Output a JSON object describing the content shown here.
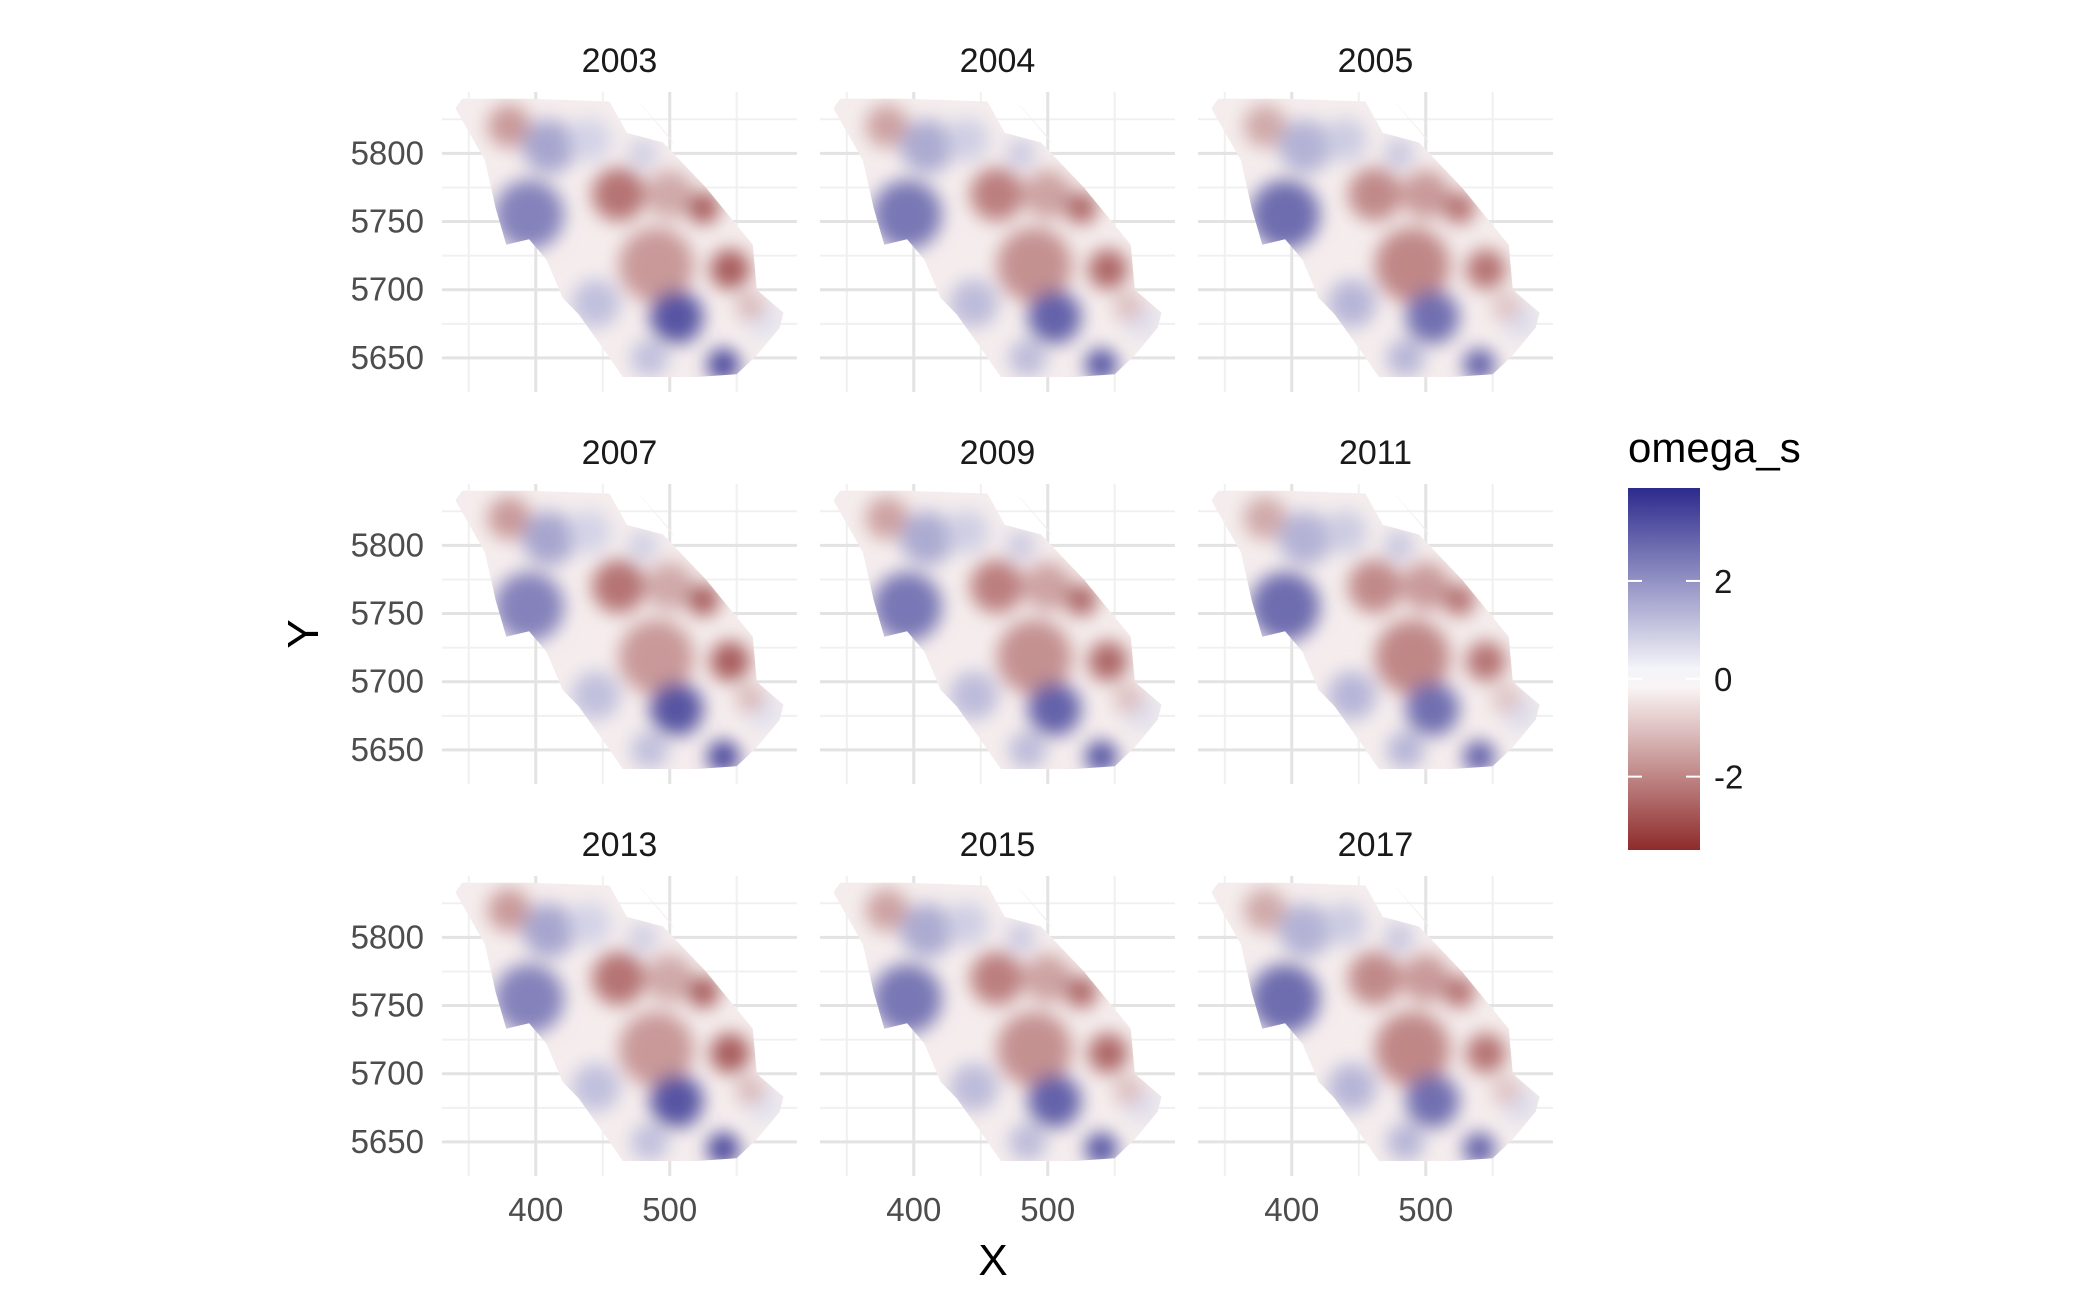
{
  "chart_data": {
    "type": "heatmap",
    "title": "",
    "xlabel": "X",
    "ylabel": "Y",
    "fill_label": "omega_s",
    "xlim": [
      330,
      595
    ],
    "ylim": [
      5625,
      5845
    ],
    "x_ticks": [
      400,
      500
    ],
    "y_ticks": [
      5650,
      5700,
      5750,
      5800
    ],
    "grid": true,
    "legend_position": "right",
    "color_scale": {
      "type": "diverging",
      "low": "#8e2a2a",
      "mid": "#ffffff",
      "high": "#2c2a8c",
      "limits": [
        -3.5,
        3.9
      ],
      "breaks": [
        -2,
        0,
        2
      ],
      "break_labels": [
        "-2",
        "0",
        "2"
      ]
    },
    "facets": [
      {
        "label": "2003",
        "year": 2003
      },
      {
        "label": "2004",
        "year": 2004
      },
      {
        "label": "2005",
        "year": 2005
      },
      {
        "label": "2007",
        "year": 2007
      },
      {
        "label": "2009",
        "year": 2009
      },
      {
        "label": "2011",
        "year": 2011
      },
      {
        "label": "2013",
        "year": 2013
      },
      {
        "label": "2015",
        "year": 2015
      },
      {
        "label": "2017",
        "year": 2017
      }
    ],
    "spatial_field": {
      "units": "data",
      "blobs": [
        {
          "x": 380,
          "y": 5820,
          "value": -1.6,
          "r": 16
        },
        {
          "x": 395,
          "y": 5755,
          "value": 2.6,
          "r": 26
        },
        {
          "x": 410,
          "y": 5805,
          "value": 1.6,
          "r": 20
        },
        {
          "x": 440,
          "y": 5810,
          "value": 0.9,
          "r": 16
        },
        {
          "x": 462,
          "y": 5770,
          "value": -2.2,
          "r": 20
        },
        {
          "x": 500,
          "y": 5770,
          "value": -1.6,
          "r": 18
        },
        {
          "x": 525,
          "y": 5760,
          "value": -2.6,
          "r": 12
        },
        {
          "x": 490,
          "y": 5718,
          "value": -1.9,
          "r": 28
        },
        {
          "x": 545,
          "y": 5715,
          "value": -2.6,
          "r": 15
        },
        {
          "x": 445,
          "y": 5690,
          "value": 1.3,
          "r": 18
        },
        {
          "x": 505,
          "y": 5680,
          "value": 3.0,
          "r": 20
        },
        {
          "x": 485,
          "y": 5650,
          "value": 1.3,
          "r": 14
        },
        {
          "x": 540,
          "y": 5645,
          "value": 3.3,
          "r": 12
        },
        {
          "x": 570,
          "y": 5678,
          "value": 0.6,
          "r": 14
        },
        {
          "x": 560,
          "y": 5688,
          "value": -1.1,
          "r": 11
        },
        {
          "x": 480,
          "y": 5800,
          "value": 1.0,
          "r": 11
        }
      ],
      "outline": [
        [
          345,
          5840
        ],
        [
          395,
          5840
        ],
        [
          455,
          5838
        ],
        [
          468,
          5815
        ],
        [
          495,
          5808
        ],
        [
          527,
          5775
        ],
        [
          562,
          5733
        ],
        [
          565,
          5700
        ],
        [
          585,
          5683
        ],
        [
          582,
          5672
        ],
        [
          565,
          5652
        ],
        [
          550,
          5638
        ],
        [
          520,
          5636
        ],
        [
          465,
          5636
        ],
        [
          448,
          5660
        ],
        [
          432,
          5682
        ],
        [
          420,
          5694
        ],
        [
          408,
          5722
        ],
        [
          395,
          5737
        ],
        [
          378,
          5733
        ],
        [
          370,
          5760
        ],
        [
          362,
          5795
        ],
        [
          340,
          5833
        ]
      ],
      "strip": [
        [
          475,
          5840
        ],
        [
          500,
          5812
        ],
        [
          504,
          5806
        ],
        [
          480,
          5834
        ]
      ]
    }
  }
}
